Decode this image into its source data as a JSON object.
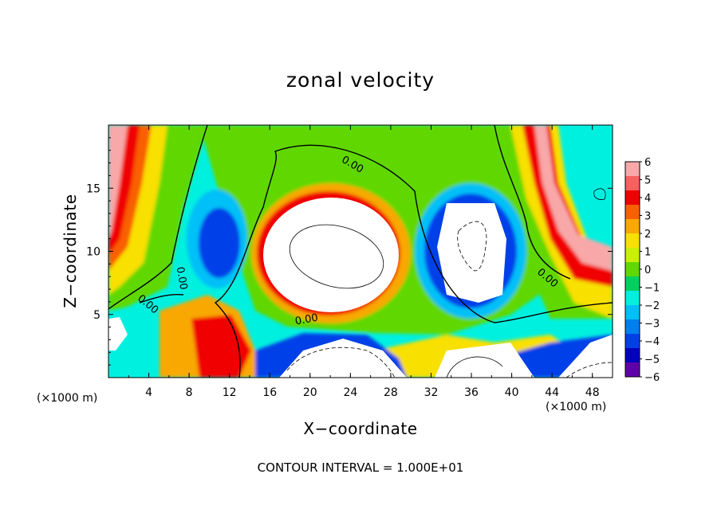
{
  "chart_data": {
    "type": "heatmap",
    "title": "zonal velocity",
    "xlabel": "X−coordinate",
    "ylabel": "Z−coordinate",
    "x_unit_label_left": "(×1000 m)",
    "x_unit_label_right": "(×1000 m)",
    "xlim": [
      0,
      50
    ],
    "ylim": [
      0,
      20
    ],
    "x_ticks": [
      "4",
      "8",
      "12",
      "16",
      "20",
      "24",
      "28",
      "32",
      "36",
      "40",
      "44",
      "48"
    ],
    "y_ticks": [
      "5",
      "10",
      "15"
    ],
    "colorbar": {
      "min": -6,
      "max": 6,
      "labels": [
        "6",
        "5",
        "4",
        "3",
        "2",
        "1",
        "0",
        "−1",
        "−2",
        "−3",
        "−4",
        "−5",
        "−6"
      ],
      "colors": [
        "#f8a8a8",
        "#f86060",
        "#f00000",
        "#f86000",
        "#f8a800",
        "#f8e000",
        "#c8f000",
        "#60d800",
        "#00d060",
        "#00f0e0",
        "#00c0f8",
        "#0080f0",
        "#0040e8",
        "#0000c0",
        "#6000a8"
      ]
    },
    "contour_labels": [
      "0.00",
      "0.00",
      "0.00",
      "0.00",
      "0.00"
    ],
    "footer": "CONTOUR INTERVAL = 1.000E+01",
    "grid": false
  }
}
